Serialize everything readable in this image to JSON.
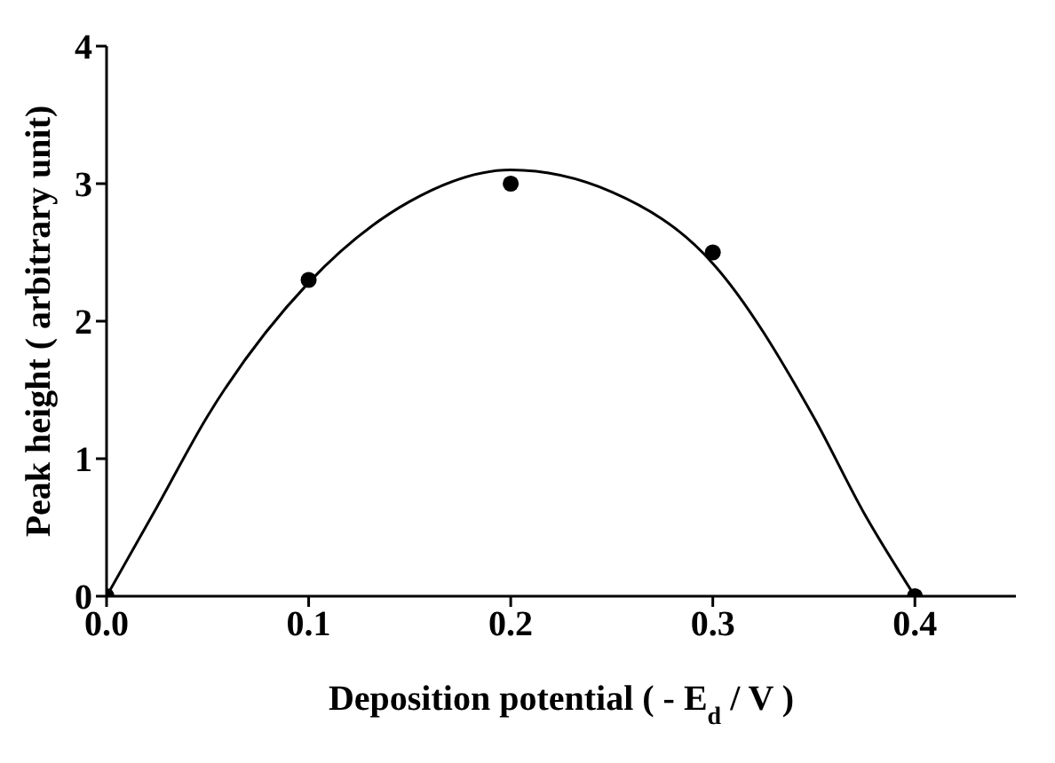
{
  "chart_data": {
    "type": "scatter",
    "xlabel": "Deposition potential ( - E$_{d}$ / V )",
    "ylabel": "Peak height ( arbitrary unit)",
    "xlim": [
      0,
      0.45
    ],
    "xticks": [
      {
        "value": 0,
        "label": "0.0"
      },
      0.1,
      0.2,
      0.3,
      0.4
    ],
    "ylim": [
      0,
      4
    ],
    "yticks": [
      0,
      1,
      2,
      3,
      4
    ],
    "grid": false,
    "legend": false,
    "series": [
      {
        "color": "#000000",
        "marker": "circle",
        "x": [
          0,
          0.1,
          0.2,
          0.3,
          0.4
        ],
        "values": [
          0,
          2.3,
          3.0,
          2.5,
          0
        ]
      },
      {
        "type": "line",
        "color": "#000000",
        "marker": "none",
        "x": [
          0,
          0.025,
          0.05,
          0.1,
          0.15,
          0.2,
          0.25,
          0.3,
          0.35,
          0.375,
          0.4
        ],
        "values": [
          0,
          0.65,
          1.31,
          2.28,
          2.87,
          3.1,
          2.94,
          2.42,
          1.3,
          0.6,
          0
        ]
      }
    ]
  }
}
